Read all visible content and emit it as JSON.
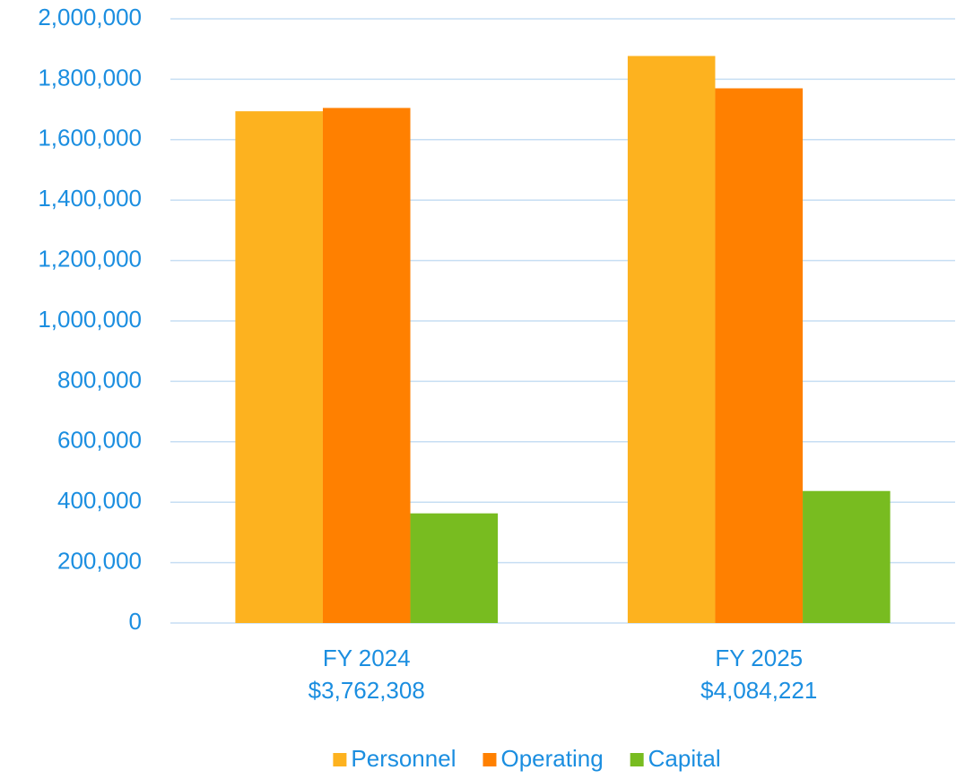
{
  "chart_data": {
    "type": "bar",
    "categories": [
      [
        "FY 2024",
        "$3,762,308"
      ],
      [
        "FY 2025",
        "$4,084,221"
      ]
    ],
    "series": [
      {
        "name": "Personnel",
        "color": "#fdb21f",
        "values": [
          1694000,
          1877000
        ]
      },
      {
        "name": "Operating",
        "color": "#ff8000",
        "values": [
          1705000,
          1770000
        ]
      },
      {
        "name": "Capital",
        "color": "#78bc20",
        "values": [
          363000,
          437000
        ]
      }
    ],
    "ylim": [
      0,
      2000000
    ],
    "yticks": [
      0,
      {
        "value": 200000,
        "label": "200,000"
      },
      {
        "value": 400000,
        "label": "400,000"
      },
      {
        "value": 600000,
        "label": "600,000"
      },
      {
        "value": 800000,
        "label": "800,000"
      },
      {
        "value": 1000000,
        "label": "1,000,000"
      },
      {
        "value": 1200000,
        "label": "1,200,000"
      },
      {
        "value": 1400000,
        "label": "1,400,000"
      },
      {
        "value": 1600000,
        "label": "1,600,000"
      },
      {
        "value": 1800000,
        "label": "1,800,000"
      },
      {
        "value": 2000000,
        "label": "2,000,000"
      }
    ],
    "grid": true,
    "legend": "bottom"
  }
}
